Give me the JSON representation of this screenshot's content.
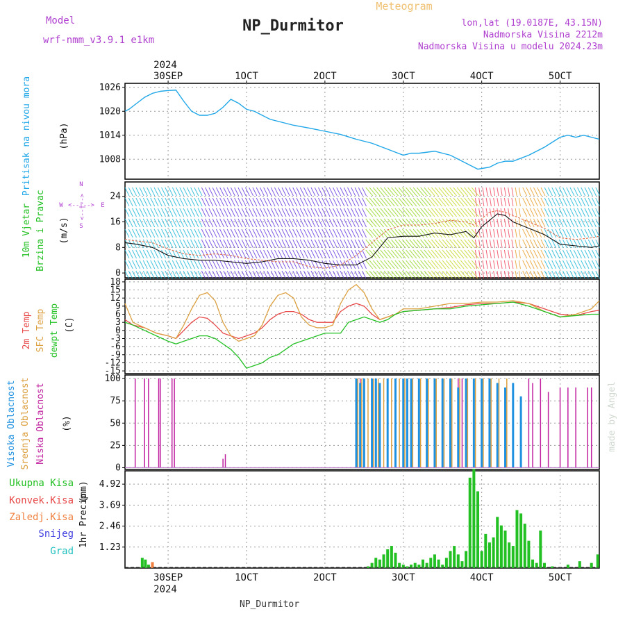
{
  "header": {
    "title": "NP_Durmitor",
    "subtitle": "Meteogram",
    "model_label": "Model",
    "model_name": "wrf-nmm_v3.9.1 e1km",
    "coords": "lon,lat (19.0187E, 43.15N)",
    "elevation": "Nadmorska Visina 2212m",
    "model_elevation": "Nadmorska Visina u modelu 2024.23m"
  },
  "footer": {
    "station": "NP_Durmitor",
    "credit": "made by Angel"
  },
  "colors": {
    "pressure": "#1ea6e8",
    "temp2m": "#e84848",
    "sfc": "#dca040",
    "dewpt": "#22c022",
    "precip_total": "#22c022",
    "conv": "#e84848",
    "freezing": "#f08040",
    "snow": "#4040e0",
    "hail": "#20c0c0",
    "cloud_high": "#1e90e0",
    "cloud_mid": "#dca040",
    "cloud_low": "#c020a0",
    "wind_label": "#22c022",
    "wind_dir": "#b040d0"
  },
  "axis_top": {
    "year": "2024",
    "dates": [
      "30SEP",
      "1OCT",
      "2OCT",
      "3OCT",
      "4OCT",
      "5OCT"
    ]
  },
  "axis_bottom": {
    "year": "2024",
    "dates": [
      "30SEP",
      "1OCT",
      "2OCT",
      "3OCT",
      "4OCT",
      "5OCT"
    ]
  },
  "compass": {
    "east": "E",
    "west": "W",
    "north": "N",
    "south": "S"
  },
  "chart_data": [
    {
      "type": "line",
      "name": "pressure",
      "ylabel_1": "Pritisak na nivou mora",
      "ylabel_2": "(hPa)",
      "ylim": [
        1003,
        1027
      ],
      "yticks": [
        1008,
        1014,
        1020,
        1026
      ],
      "xlim": [
        -0.55,
        5.5
      ],
      "grid": true,
      "x": [
        -0.55,
        -0.5,
        -0.4,
        -0.3,
        -0.2,
        -0.1,
        0,
        0.1,
        0.2,
        0.3,
        0.4,
        0.5,
        0.6,
        0.7,
        0.8,
        0.9,
        1.0,
        1.1,
        1.2,
        1.3,
        1.4,
        1.5,
        1.6,
        1.8,
        2.0,
        2.2,
        2.4,
        2.6,
        2.8,
        3.0,
        3.1,
        3.2,
        3.4,
        3.6,
        3.8,
        3.95,
        4.1,
        4.2,
        4.3,
        4.4,
        4.6,
        4.8,
        5.0,
        5.1,
        5.2,
        5.3,
        5.4,
        5.5
      ],
      "y": [
        1020,
        1020.5,
        1022,
        1023.5,
        1024.5,
        1025,
        1025.2,
        1025.3,
        1022.5,
        1020,
        1019,
        1019,
        1019.5,
        1021,
        1023,
        1022,
        1020.5,
        1020,
        1019,
        1018,
        1017.5,
        1017,
        1016.5,
        1015.8,
        1015,
        1014.2,
        1013,
        1012,
        1010.5,
        1009,
        1009.5,
        1009.5,
        1010,
        1009,
        1007,
        1005.5,
        1006,
        1007,
        1007.5,
        1007.5,
        1009,
        1011,
        1013.5,
        1014,
        1013.5,
        1014,
        1013.5,
        1013
      ]
    },
    {
      "type": "line",
      "name": "wind",
      "ylabel_1": "10m Vjetar",
      "ylabel_2": "Brzina i Pravac",
      "ylabel_3": "(m/s)",
      "ylim": [
        -1.5,
        28.5
      ],
      "yticks": [
        0,
        8,
        16,
        24
      ],
      "xlim": [
        -0.55,
        5.5
      ],
      "grid": true,
      "x": [
        -0.55,
        -0.4,
        -0.2,
        0,
        0.2,
        0.4,
        0.6,
        0.8,
        1.0,
        1.2,
        1.4,
        1.6,
        1.8,
        2.0,
        2.2,
        2.4,
        2.6,
        2.8,
        3.0,
        3.2,
        3.4,
        3.6,
        3.8,
        3.9,
        4.0,
        4.1,
        4.2,
        4.3,
        4.4,
        4.6,
        4.8,
        5.0,
        5.2,
        5.4,
        5.5
      ],
      "series": [
        {
          "name": "speed",
          "values": [
            9.5,
            9.0,
            8.0,
            5.5,
            4.5,
            4.0,
            4.0,
            3.5,
            3.0,
            3.5,
            4.5,
            4.5,
            4.0,
            3.0,
            2.5,
            2.5,
            5.0,
            11.0,
            11.5,
            11.5,
            12.5,
            12.0,
            13.0,
            11.0,
            14.5,
            16.5,
            18.5,
            18.0,
            16.0,
            14.0,
            12.0,
            9.0,
            8.5,
            8.0,
            8.5
          ]
        },
        {
          "name": "gust",
          "values": [
            10.5,
            10.0,
            9.5,
            7.5,
            6.0,
            5.5,
            6.0,
            5.5,
            4.5,
            4.0,
            3.5,
            3.5,
            2.0,
            1.5,
            2.5,
            5.5,
            9.5,
            13.5,
            15.0,
            15.0,
            15.5,
            16.5,
            16.0,
            15.0,
            17.0,
            19.0,
            19.5,
            19.0,
            18.0,
            16.0,
            14.0,
            11.0,
            10.5,
            11.0,
            11.5
          ]
        }
      ]
    },
    {
      "type": "line",
      "name": "temperature",
      "ylabel_1": "2m Temp",
      "ylabel_2": "SFC Temp",
      "ylabel_3": "dewpt Temp",
      "ylabel_4": "(C)",
      "ylim": [
        -16,
        19
      ],
      "yticks": [
        -15,
        -12,
        -9,
        -6,
        -3,
        0,
        3,
        6,
        9,
        12,
        15,
        18
      ],
      "xlim": [
        -0.55,
        5.5
      ],
      "grid": true,
      "x": [
        -0.55,
        -0.45,
        -0.3,
        -0.15,
        0,
        0.1,
        0.2,
        0.3,
        0.4,
        0.5,
        0.6,
        0.7,
        0.8,
        0.9,
        1.0,
        1.1,
        1.2,
        1.3,
        1.4,
        1.5,
        1.6,
        1.7,
        1.8,
        1.9,
        2.0,
        2.1,
        2.2,
        2.3,
        2.4,
        2.5,
        2.6,
        2.7,
        2.8,
        2.9,
        3.0,
        3.2,
        3.4,
        3.6,
        3.8,
        4.0,
        4.2,
        4.4,
        4.6,
        4.8,
        5.0,
        5.2,
        5.4,
        5.5
      ],
      "series": [
        {
          "name": "2m Temp",
          "values": [
            4,
            2,
            1,
            -1,
            -2,
            -3,
            0,
            3,
            5,
            4.5,
            2,
            -1,
            -2,
            -3,
            -2,
            -1,
            1,
            4,
            6,
            7,
            7,
            6,
            4,
            3,
            3,
            3,
            7,
            9,
            10,
            9,
            6,
            4,
            5,
            6,
            7,
            7.5,
            8,
            8.5,
            9.5,
            10,
            10,
            10.5,
            10,
            8,
            6,
            5.5,
            7,
            7.5
          ]
        },
        {
          "name": "SFC Temp",
          "values": [
            10,
            3,
            1,
            -1,
            -2,
            -3,
            2,
            8,
            13,
            14,
            11,
            3,
            -2,
            -4,
            -3,
            -2,
            2,
            9,
            13,
            14,
            12,
            5,
            2,
            1,
            1,
            2,
            10,
            15,
            17,
            14,
            8,
            4,
            5,
            6,
            8,
            8,
            9,
            10,
            10,
            10.5,
            10.5,
            11,
            10,
            7,
            5,
            6,
            8,
            11
          ]
        },
        {
          "name": "dewpt Temp",
          "values": [
            3,
            2,
            0,
            -2,
            -4,
            -5,
            -4,
            -3,
            -2,
            -2,
            -3,
            -5,
            -7,
            -10,
            -14,
            -13,
            -12,
            -10,
            -9,
            -7,
            -5,
            -4,
            -3,
            -2,
            -1,
            -1,
            -1,
            3,
            4,
            5,
            4,
            3,
            4,
            6,
            7,
            7.5,
            8,
            8,
            9,
            9.5,
            10,
            10.5,
            9,
            7,
            5,
            5.5,
            6,
            6
          ]
        }
      ]
    },
    {
      "type": "bar",
      "name": "cloud_cover",
      "ylabel_1": "Visoka Oblacnost",
      "ylabel_2": "Srednja Oblacnost",
      "ylabel_3": "Niska Oblacnost",
      "ylabel_4": "(%)",
      "ylim": [
        -2,
        104
      ],
      "yticks": [
        0,
        25,
        50,
        75,
        100
      ],
      "xlim": [
        -0.55,
        5.5
      ],
      "grid": true,
      "series": [
        {
          "name": "low",
          "x": [
            -0.42,
            -0.3,
            -0.25,
            -0.12,
            -0.1,
            0.05,
            0.08,
            0.7,
            0.73,
            2.4,
            2.45,
            3.7,
            3.75,
            4.1,
            4.4,
            4.6,
            4.65,
            4.75,
            4.85,
            5.0,
            5.1,
            5.2,
            5.35,
            5.4
          ],
          "values": [
            100,
            100,
            100,
            100,
            100,
            100,
            100,
            10,
            15,
            100,
            100,
            100,
            100,
            100,
            95,
            100,
            95,
            100,
            85,
            90,
            90,
            90,
            90,
            90
          ]
        },
        {
          "name": "high",
          "x": [
            2.4,
            2.45,
            2.5,
            2.6,
            2.65,
            2.7,
            2.8,
            2.9,
            3.0,
            3.05,
            3.1,
            3.2,
            3.3,
            3.4,
            3.5,
            3.6,
            3.7,
            3.8,
            3.9,
            4.0,
            4.1,
            4.2,
            4.3,
            4.4,
            4.5
          ],
          "values": [
            100,
            95,
            100,
            100,
            100,
            95,
            100,
            100,
            100,
            100,
            100,
            100,
            100,
            100,
            100,
            100,
            90,
            100,
            100,
            100,
            100,
            95,
            90,
            95,
            80
          ]
        },
        {
          "name": "mid",
          "x": [
            2.42,
            2.47,
            2.55,
            2.62,
            2.68,
            2.75,
            2.85,
            2.95,
            3.02,
            3.12,
            3.22,
            3.32,
            3.42,
            3.52,
            3.62,
            3.72,
            3.82,
            3.92,
            4.02,
            4.12,
            4.22,
            4.32
          ],
          "values": [
            100,
            100,
            100,
            100,
            100,
            100,
            100,
            100,
            100,
            100,
            100,
            100,
            100,
            100,
            100,
            100,
            100,
            100,
            100,
            100,
            100,
            100
          ]
        }
      ]
    },
    {
      "type": "bar",
      "name": "precipitation",
      "legend": [
        "Ukupna Kisa",
        "Konvek.Kisa",
        "Zaledj.Kisa",
        "Snijeg",
        "Grad"
      ],
      "ylabel_1": "1hr Precip",
      "ylabel_2": "(mm)",
      "ylim": [
        0,
        5.7
      ],
      "yticks": [
        1.23,
        2.46,
        3.69,
        4.92
      ],
      "ytick_labels": [
        "1.23",
        "2.46",
        "3.69",
        "4.92"
      ],
      "xlim": [
        -0.55,
        5.5
      ],
      "grid": true,
      "series": [
        {
          "name": "Ukupna Kisa",
          "x": [
            -0.33,
            -0.29,
            -0.25,
            2.55,
            2.6,
            2.65,
            2.7,
            2.75,
            2.8,
            2.85,
            2.9,
            2.95,
            3.0,
            3.05,
            3.1,
            3.15,
            3.2,
            3.25,
            3.3,
            3.35,
            3.4,
            3.45,
            3.5,
            3.55,
            3.6,
            3.65,
            3.7,
            3.75,
            3.8,
            3.85,
            3.9,
            3.95,
            4.0,
            4.05,
            4.1,
            4.15,
            4.2,
            4.25,
            4.3,
            4.35,
            4.4,
            4.45,
            4.5,
            4.55,
            4.6,
            4.65,
            4.7,
            4.75,
            4.8,
            4.9,
            5.1,
            5.25,
            5.4,
            5.48
          ],
          "values": [
            0.6,
            0.5,
            0.2,
            0.1,
            0.3,
            0.6,
            0.5,
            0.8,
            1.1,
            1.3,
            0.9,
            0.3,
            0.2,
            0.1,
            0.2,
            0.3,
            0.2,
            0.5,
            0.3,
            0.6,
            0.8,
            0.5,
            0.2,
            0.6,
            1.0,
            1.3,
            0.8,
            0.4,
            1.0,
            5.3,
            5.8,
            4.5,
            1.0,
            2.0,
            1.5,
            1.8,
            3.0,
            2.5,
            2.2,
            1.5,
            1.3,
            3.4,
            3.2,
            2.6,
            1.6,
            0.5,
            0.3,
            2.2,
            0.3,
            0.1,
            0.2,
            0.4,
            0.3,
            0.8
          ]
        },
        {
          "name": "Zaledj.Kisa",
          "x": [
            -0.2
          ],
          "values": [
            0.35
          ]
        }
      ]
    }
  ]
}
